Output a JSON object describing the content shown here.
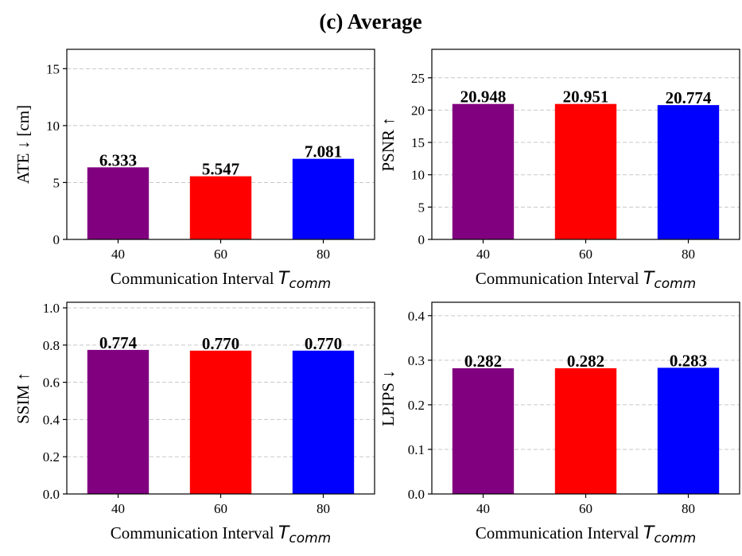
{
  "figure_title": "(c) Average",
  "colors": {
    "bars": [
      "#800080",
      "#ff0000",
      "#0000ff"
    ],
    "grid": "#c8c8c8",
    "axis": "#000000"
  },
  "chart_data": [
    {
      "type": "bar",
      "id": "ate",
      "categories": [
        "40",
        "60",
        "80"
      ],
      "values": [
        6.333,
        5.547,
        7.081
      ],
      "value_labels": [
        "6.333",
        "5.547",
        "7.081"
      ],
      "xlabel": "Communication Interval",
      "xlabel_symbol": "T",
      "xlabel_subscript": "comm",
      "ylabel": "ATE ↓  [cm]",
      "ylim": [
        0,
        16.7
      ],
      "yticks": [
        0,
        5,
        10,
        15
      ],
      "ytick_labels": [
        "0",
        "5",
        "10",
        "15"
      ],
      "grid": true
    },
    {
      "type": "bar",
      "id": "psnr",
      "categories": [
        "40",
        "60",
        "80"
      ],
      "values": [
        20.948,
        20.951,
        20.774
      ],
      "value_labels": [
        "20.948",
        "20.951",
        "20.774"
      ],
      "xlabel": "Communication Interval",
      "xlabel_symbol": "T",
      "xlabel_subscript": "comm",
      "ylabel": "PSNR ↑",
      "ylim": [
        0,
        29.4
      ],
      "yticks": [
        0,
        5,
        10,
        15,
        20,
        25
      ],
      "ytick_labels": [
        "0",
        "5",
        "10",
        "15",
        "20",
        "25"
      ],
      "grid": true
    },
    {
      "type": "bar",
      "id": "ssim",
      "categories": [
        "40",
        "60",
        "80"
      ],
      "values": [
        0.774,
        0.77,
        0.77
      ],
      "value_labels": [
        "0.774",
        "0.770",
        "0.770"
      ],
      "xlabel": "Communication Interval",
      "xlabel_symbol": "T",
      "xlabel_subscript": "comm",
      "ylabel": "SSIM ↑",
      "ylim": [
        0,
        1.03
      ],
      "yticks": [
        0,
        0.2,
        0.4,
        0.6,
        0.8,
        1.0
      ],
      "ytick_labels": [
        "0.0",
        "0.2",
        "0.4",
        "0.6",
        "0.8",
        "1.0"
      ],
      "grid": true
    },
    {
      "type": "bar",
      "id": "lpips",
      "categories": [
        "40",
        "60",
        "80"
      ],
      "values": [
        0.282,
        0.282,
        0.283
      ],
      "value_labels": [
        "0.282",
        "0.282",
        "0.283"
      ],
      "xlabel": "Communication Interval",
      "xlabel_symbol": "T",
      "xlabel_subscript": "comm",
      "ylabel": "LPIPS ↓",
      "ylim": [
        0,
        0.43
      ],
      "yticks": [
        0,
        0.1,
        0.2,
        0.3,
        0.4
      ],
      "ytick_labels": [
        "0.0",
        "0.1",
        "0.2",
        "0.3",
        "0.4"
      ],
      "grid": true
    }
  ]
}
